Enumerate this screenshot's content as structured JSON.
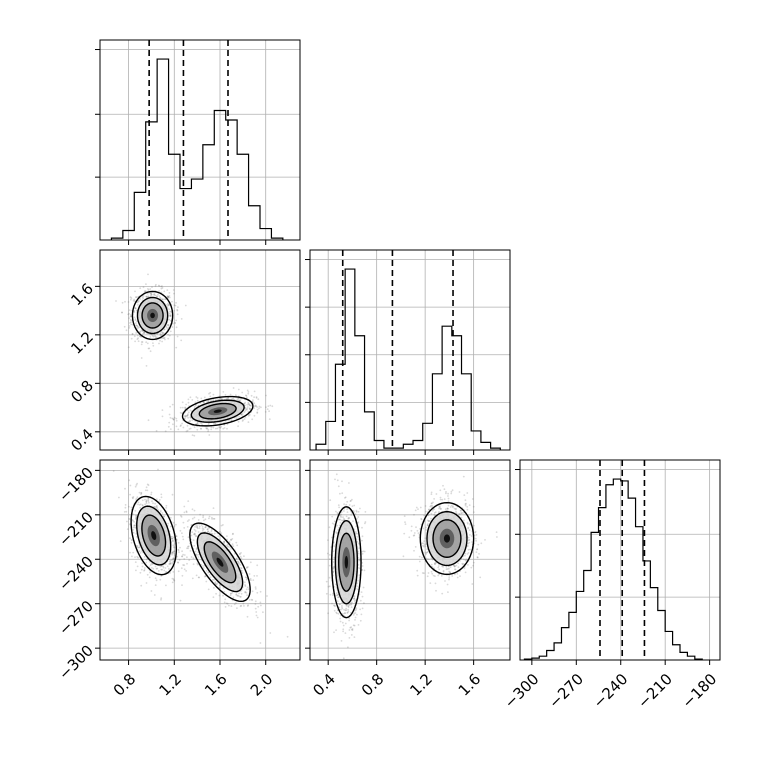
{
  "chart_data": {
    "type": "corner",
    "title": "",
    "params": [
      {
        "range": [
          0.55,
          2.3
        ],
        "ticks": [
          0.8,
          1.2,
          1.6,
          2.0
        ],
        "tick_labels": [
          "0.8",
          "1.2",
          "1.6",
          "2.0"
        ]
      },
      {
        "range": [
          0.25,
          1.9
        ],
        "ticks": [
          0.4,
          0.8,
          1.2,
          1.6
        ],
        "tick_labels": [
          "0.4",
          "0.8",
          "1.2",
          "1.6"
        ]
      },
      {
        "range": [
          -308,
          -173
        ],
        "ticks": [
          -300,
          -270,
          -240,
          -210,
          -180
        ],
        "tick_labels": [
          "−300",
          "−270",
          "−240",
          "−210",
          "−180"
        ]
      }
    ],
    "histograms": [
      {
        "edges": [
          0.65,
          0.75,
          0.85,
          0.95,
          1.05,
          1.15,
          1.25,
          1.35,
          1.45,
          1.55,
          1.65,
          1.75,
          1.85,
          1.95,
          2.05,
          2.15
        ],
        "counts": [
          0.01,
          0.05,
          0.25,
          0.62,
          0.95,
          0.45,
          0.27,
          0.32,
          0.5,
          0.68,
          0.63,
          0.45,
          0.18,
          0.06,
          0.01
        ],
        "quantiles": [
          0.98,
          1.28,
          1.67
        ],
        "ymax": 1.0,
        "yticks": [
          0.33,
          0.66,
          1.0
        ]
      },
      {
        "edges": [
          0.3,
          0.38,
          0.46,
          0.54,
          0.62,
          0.7,
          0.78,
          0.86,
          0.94,
          1.02,
          1.1,
          1.18,
          1.26,
          1.34,
          1.42,
          1.5,
          1.58,
          1.66,
          1.74,
          1.82
        ],
        "counts": [
          0.03,
          0.15,
          0.45,
          0.95,
          0.6,
          0.2,
          0.05,
          0.01,
          0.01,
          0.03,
          0.05,
          0.14,
          0.4,
          0.65,
          0.6,
          0.4,
          0.1,
          0.04,
          0.01
        ],
        "quantiles": [
          0.52,
          0.93,
          1.43
        ],
        "ymax": 1.0,
        "yticks": [
          0.25,
          0.5,
          0.75,
          1.0
        ]
      },
      {
        "edges": [
          -305,
          -300,
          -295,
          -290,
          -285,
          -280,
          -275,
          -270,
          -265,
          -260,
          -255,
          -250,
          -245,
          -240,
          -235,
          -230,
          -225,
          -220,
          -215,
          -210,
          -205,
          -200,
          -195,
          -190,
          -185
        ],
        "counts": [
          0.005,
          0.01,
          0.02,
          0.05,
          0.09,
          0.17,
          0.25,
          0.36,
          0.47,
          0.67,
          0.8,
          0.92,
          0.95,
          0.94,
          0.85,
          0.7,
          0.52,
          0.38,
          0.26,
          0.15,
          0.08,
          0.04,
          0.02,
          0.005
        ],
        "quantiles": [
          -254,
          -239,
          -224
        ],
        "ymax": 1.0,
        "yticks": [
          0.33,
          0.66,
          1.0
        ]
      }
    ],
    "pairs": [
      {
        "row": 1,
        "col": 0,
        "clusters": [
          {
            "cx": 1.01,
            "cy": 1.36,
            "sx": 0.08,
            "sy": 0.09,
            "rho": 0.0,
            "weight": 0.5
          },
          {
            "cx": 1.58,
            "cy": 0.57,
            "sx": 0.14,
            "sy": 0.055,
            "rho": 0.35,
            "weight": 0.5
          }
        ]
      },
      {
        "row": 2,
        "col": 0,
        "clusters": [
          {
            "cx": 1.02,
            "cy": -224,
            "sx": 0.09,
            "sy": 12,
            "rho": -0.35,
            "weight": 0.5
          },
          {
            "cx": 1.6,
            "cy": -242,
            "sx": 0.12,
            "sy": 12,
            "rho": -0.7,
            "weight": 0.5
          }
        ]
      },
      {
        "row": 2,
        "col": 1,
        "clusters": [
          {
            "cx": 0.55,
            "cy": -242,
            "sx": 0.055,
            "sy": 17,
            "rho": 0.0,
            "weight": 0.5
          },
          {
            "cx": 1.38,
            "cy": -226,
            "sx": 0.1,
            "sy": 11,
            "rho": 0.0,
            "weight": 0.5
          }
        ]
      }
    ]
  }
}
